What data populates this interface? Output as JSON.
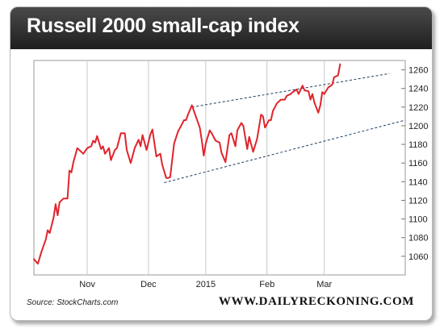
{
  "chart_data": {
    "type": "line",
    "title": "Russell 2000 small-cap index",
    "xlabel": "",
    "ylabel": "",
    "x_tick_labels": [
      "Nov",
      "Dec",
      "2015",
      "Feb",
      "Mar"
    ],
    "x_tick_positions": [
      27,
      58,
      87,
      118,
      147
    ],
    "x_range": [
      0,
      188
    ],
    "ylim": [
      1040,
      1270
    ],
    "y_ticks": [
      1060,
      1080,
      1100,
      1120,
      1140,
      1160,
      1180,
      1200,
      1220,
      1240,
      1260
    ],
    "y_axis_side": "right",
    "grid": {
      "vertical": true,
      "horizontal": false
    },
    "line_color": "#e0242b",
    "series": [
      {
        "values": [
          [
            0,
            1057
          ],
          [
            2,
            1052
          ],
          [
            4,
            1066
          ],
          [
            6,
            1078
          ],
          [
            7,
            1088
          ],
          [
            8,
            1085
          ],
          [
            10,
            1102
          ],
          [
            11,
            1116
          ],
          [
            12,
            1104
          ],
          [
            13,
            1118
          ],
          [
            15,
            1122
          ],
          [
            17,
            1122
          ],
          [
            18,
            1152
          ],
          [
            19,
            1150
          ],
          [
            20,
            1161
          ],
          [
            22,
            1176
          ],
          [
            24,
            1172
          ],
          [
            25,
            1170
          ],
          [
            27,
            1176
          ],
          [
            29,
            1178
          ],
          [
            30,
            1184
          ],
          [
            31,
            1182
          ],
          [
            32,
            1189
          ],
          [
            34,
            1175
          ],
          [
            35,
            1178
          ],
          [
            36,
            1170
          ],
          [
            38,
            1176
          ],
          [
            39,
            1163
          ],
          [
            41,
            1174
          ],
          [
            42,
            1176
          ],
          [
            44,
            1192
          ],
          [
            46,
            1192
          ],
          [
            47,
            1174
          ],
          [
            49,
            1160
          ],
          [
            51,
            1176
          ],
          [
            53,
            1185
          ],
          [
            54,
            1178
          ],
          [
            55,
            1190
          ],
          [
            57,
            1174
          ],
          [
            59,
            1191
          ],
          [
            60,
            1196
          ],
          [
            62,
            1167
          ],
          [
            64,
            1170
          ],
          [
            65,
            1158
          ],
          [
            67,
            1144
          ],
          [
            68,
            1144
          ],
          [
            69,
            1145
          ],
          [
            71,
            1181
          ],
          [
            73,
            1194
          ],
          [
            74,
            1198
          ],
          [
            76,
            1206
          ],
          [
            77,
            1206
          ],
          [
            78,
            1212
          ],
          [
            80,
            1222
          ],
          [
            82,
            1210
          ],
          [
            84,
            1198
          ],
          [
            85,
            1184
          ],
          [
            86,
            1168
          ],
          [
            87,
            1181
          ],
          [
            89,
            1195
          ],
          [
            90,
            1192
          ],
          [
            92,
            1184
          ],
          [
            94,
            1182
          ],
          [
            95,
            1171
          ],
          [
            97,
            1161
          ],
          [
            99,
            1190
          ],
          [
            100,
            1192
          ],
          [
            102,
            1178
          ],
          [
            103,
            1195
          ],
          [
            105,
            1203
          ],
          [
            106,
            1200
          ],
          [
            108,
            1175
          ],
          [
            109,
            1188
          ],
          [
            111,
            1172
          ],
          [
            113,
            1186
          ],
          [
            115,
            1212
          ],
          [
            116,
            1210
          ],
          [
            117,
            1198
          ],
          [
            119,
            1206
          ],
          [
            120,
            1206
          ],
          [
            121,
            1216
          ],
          [
            123,
            1224
          ],
          [
            125,
            1228
          ],
          [
            127,
            1228
          ],
          [
            128,
            1232
          ],
          [
            130,
            1234
          ],
          [
            131,
            1236
          ],
          [
            133,
            1239
          ],
          [
            134,
            1234
          ],
          [
            136,
            1243
          ],
          [
            137,
            1238
          ],
          [
            139,
            1237
          ],
          [
            140,
            1228
          ],
          [
            141,
            1234
          ],
          [
            142,
            1225
          ],
          [
            144,
            1214
          ],
          [
            145,
            1222
          ],
          [
            146,
            1236
          ],
          [
            147,
            1234
          ],
          [
            149,
            1241
          ],
          [
            151,
            1244
          ],
          [
            152,
            1252
          ],
          [
            154,
            1254
          ],
          [
            155,
            1266
          ]
        ]
      }
    ],
    "trendlines": [
      {
        "x": [
          80,
          180
        ],
        "y": [
          1220,
          1256
        ]
      },
      {
        "x": [
          66,
          188
        ],
        "y": [
          1139,
          1206
        ]
      }
    ]
  },
  "source": "Source: StockCharts.com",
  "brand": "WWW.DAILYRECKONING.COM"
}
